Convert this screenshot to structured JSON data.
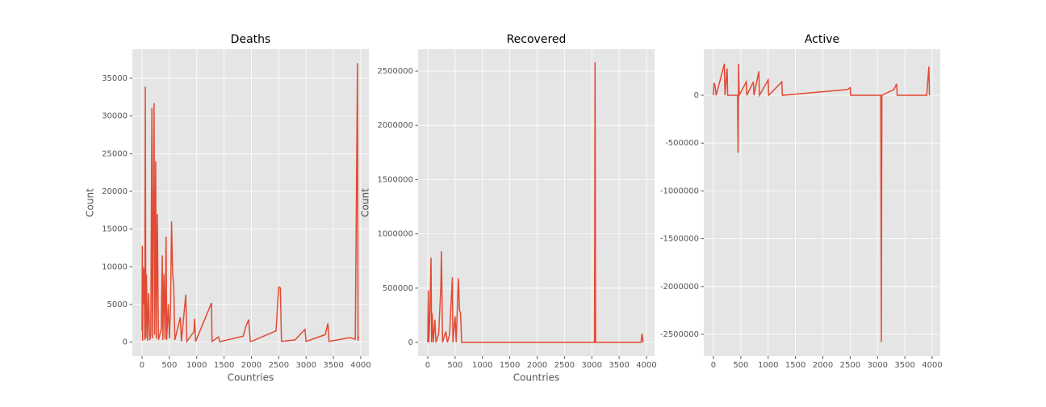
{
  "chart_data": [
    {
      "type": "line",
      "title": "Deaths",
      "xlabel": "Countries",
      "ylabel": "Count",
      "color": "#e24a33",
      "grid": true,
      "x": [
        0,
        5,
        10,
        15,
        25,
        40,
        50,
        60,
        70,
        80,
        100,
        120,
        140,
        160,
        180,
        190,
        200,
        220,
        230,
        250,
        260,
        280,
        300,
        350,
        370,
        380,
        400,
        420,
        440,
        450,
        480,
        500,
        520,
        540,
        560,
        580,
        600,
        700,
        720,
        800,
        820,
        950,
        960,
        980,
        1270,
        1280,
        1400,
        1420,
        1850,
        1900,
        1950,
        1980,
        2000,
        2450,
        2480,
        2500,
        2530,
        2550,
        2800,
        2980,
        3000,
        3350,
        3400,
        3420,
        3800,
        3900,
        3940,
        3950,
        3960
      ],
      "values": [
        1500,
        12800,
        200,
        10000,
        5000,
        9800,
        300,
        33900,
        500,
        9000,
        200,
        6500,
        300,
        1000,
        31100,
        500,
        11000,
        31700,
        1000,
        24000,
        500,
        17000,
        300,
        1700,
        11500,
        300,
        9000,
        400,
        14000,
        300,
        5000,
        500,
        4500,
        16000,
        9000,
        7400,
        300,
        3300,
        100,
        6300,
        100,
        1400,
        3100,
        100,
        5200,
        100,
        700,
        50,
        800,
        2100,
        3000,
        100,
        100,
        1500,
        5000,
        7300,
        7200,
        100,
        300,
        1700,
        100,
        1000,
        2500,
        100,
        600,
        400,
        37000,
        200,
        800
      ],
      "xlim": [
        -177,
        4148
      ],
      "ylim": [
        -1850,
        38850
      ],
      "xticks": [
        0,
        500,
        1000,
        1500,
        2000,
        2500,
        3000,
        3500,
        4000
      ],
      "yticks": [
        0,
        5000,
        10000,
        15000,
        20000,
        25000,
        30000,
        35000
      ]
    },
    {
      "type": "line",
      "title": "Recovered",
      "xlabel": "Countries",
      "ylabel": "Count",
      "color": "#e24a33",
      "grid": true,
      "x": [
        0,
        10,
        20,
        40,
        60,
        70,
        80,
        100,
        130,
        150,
        200,
        240,
        250,
        260,
        270,
        330,
        360,
        400,
        450,
        460,
        500,
        520,
        560,
        580,
        600,
        620,
        3050,
        3060,
        3070,
        3900,
        3920,
        3940
      ],
      "values": [
        0,
        480000,
        0,
        280000,
        780000,
        0,
        270000,
        0,
        210000,
        0,
        80000,
        520000,
        840000,
        470000,
        0,
        100000,
        0,
        80000,
        600000,
        0,
        240000,
        0,
        590000,
        300000,
        270000,
        0,
        0,
        2580000,
        0,
        0,
        80000,
        0
      ],
      "xlim": [
        -177,
        4148
      ],
      "ylim": [
        -126500,
        2700900
      ],
      "xticks": [
        0,
        500,
        1000,
        1500,
        2000,
        2500,
        3000,
        3500,
        4000
      ],
      "yticks": [
        0,
        500000,
        1000000,
        1500000,
        2000000,
        2500000
      ]
    },
    {
      "type": "line",
      "title": "Active",
      "color": "#e24a33",
      "grid": true,
      "x": [
        0,
        10,
        30,
        50,
        200,
        210,
        250,
        260,
        440,
        450,
        460,
        470,
        600,
        610,
        730,
        740,
        830,
        840,
        1000,
        1010,
        1250,
        1260,
        2450,
        2500,
        2510,
        3060,
        3070,
        3080,
        3300,
        3350,
        3360,
        3900,
        3940,
        3950
      ],
      "values": [
        0,
        130000,
        100000,
        0,
        330000,
        0,
        280000,
        0,
        0,
        -600000,
        330000,
        0,
        140000,
        0,
        140000,
        0,
        250000,
        0,
        160000,
        0,
        140000,
        0,
        60000,
        80000,
        0,
        0,
        -2580000,
        0,
        60000,
        120000,
        0,
        0,
        300000,
        0
      ],
      "xlim": [
        -177,
        4148
      ],
      "ylim": [
        -2728000,
        481400
      ],
      "xticks": [
        0,
        500,
        1000,
        1500,
        2000,
        2500,
        3000,
        3500,
        4000
      ],
      "yticks": [
        -2500000,
        -2000000,
        -1500000,
        -1000000,
        -500000,
        0
      ]
    }
  ]
}
